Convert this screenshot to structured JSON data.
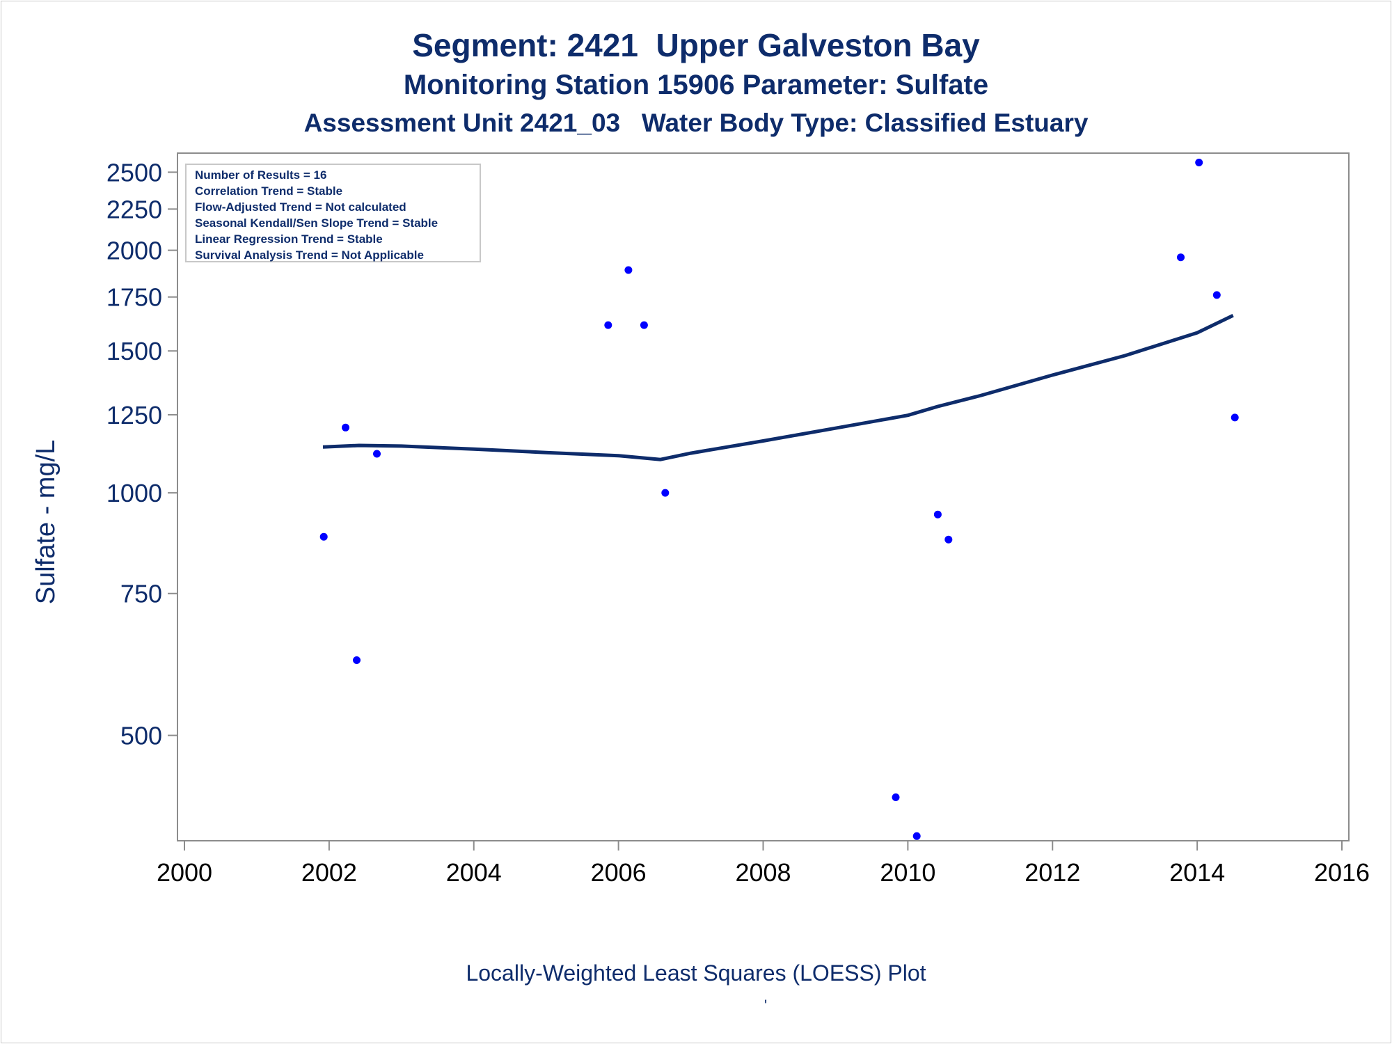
{
  "title": "Segment: 2421  Upper Galveston Bay",
  "subtitle": "Monitoring Station 15906 Parameter: Sulfate",
  "subtitle2": "Assessment Unit 2421_03   Water Body Type: Classified Estuary",
  "footnote": "Locally-Weighted Least Squares (LOESS) Plot",
  "footnote_mark": "'",
  "colors": {
    "text": "#0e2c6b",
    "points": "#0000ff",
    "loess": "#0e2c6b",
    "axis": "#8c8c8c"
  },
  "chart_data": {
    "type": "scatter",
    "ylabel": "Sulfate - mg/L",
    "xlabel": "",
    "y_scale": "log",
    "xlim": [
      2000,
      2016
    ],
    "ylim": [
      370,
      2640
    ],
    "x_ticks": [
      2000,
      2002,
      2004,
      2006,
      2008,
      2010,
      2012,
      2014,
      2016
    ],
    "y_ticks": [
      500,
      750,
      1000,
      1250,
      1500,
      1750,
      2000,
      2250,
      2500
    ],
    "annotation_box": [
      "Number of Results = 16",
      "Correlation Trend = Stable",
      "Flow-Adjusted Trend = Not calculated",
      "Seasonal Kendall/Sen Slope Trend = Stable",
      "Linear Regression Trend = Stable",
      "Survival Analysis Trend = Not Applicable"
    ],
    "points": [
      {
        "x": "2001-12-05",
        "y": 882
      },
      {
        "x": "2002-03-25",
        "y": 1205
      },
      {
        "x": "2002-05-20",
        "y": 620
      },
      {
        "x": "2002-08-30",
        "y": 1118
      },
      {
        "x": "2005-11-10",
        "y": 1615
      },
      {
        "x": "2006-02-20",
        "y": 1890
      },
      {
        "x": "2006-05-10",
        "y": 1615
      },
      {
        "x": "2006-08-25",
        "y": 1000
      },
      {
        "x": "2009-11-01",
        "y": 419
      },
      {
        "x": "2010-02-15",
        "y": 375
      },
      {
        "x": "2010-06-01",
        "y": 940
      },
      {
        "x": "2010-07-25",
        "y": 875
      },
      {
        "x": "2013-10-10",
        "y": 1960
      },
      {
        "x": "2014-01-10",
        "y": 2570
      },
      {
        "x": "2014-04-10",
        "y": 1760
      },
      {
        "x": "2014-07-10",
        "y": 1240
      }
    ],
    "loess": {
      "x": [
        "2001-12-01",
        "2002-06-01",
        "2003-01-01",
        "2004-01-01",
        "2005-01-01",
        "2006-01-01",
        "2006-08-01",
        "2007-01-01",
        "2008-01-01",
        "2009-01-01",
        "2010-01-01",
        "2010-06-01",
        "2011-01-01",
        "2012-01-01",
        "2013-01-01",
        "2014-01-01",
        "2014-07-01"
      ],
      "y": [
        1140,
        1145,
        1143,
        1133,
        1122,
        1112,
        1100,
        1120,
        1160,
        1203,
        1248,
        1280,
        1320,
        1400,
        1480,
        1580,
        1660
      ]
    }
  }
}
